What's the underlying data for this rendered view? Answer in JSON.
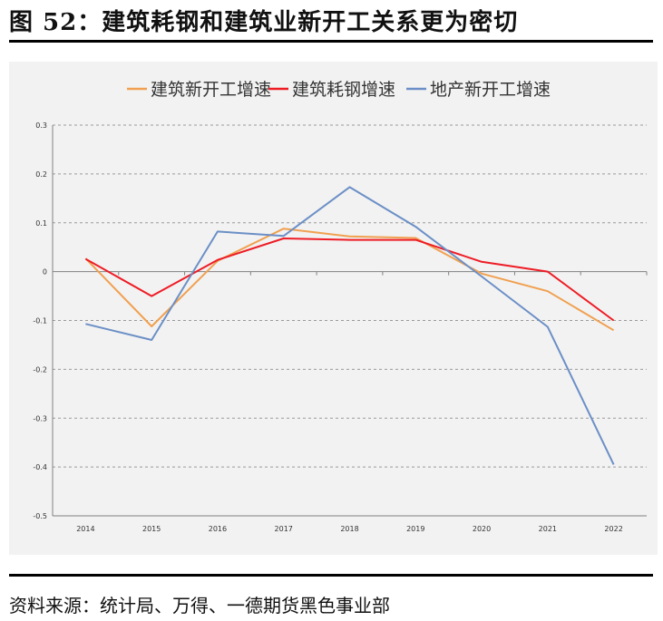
{
  "figure_title": "图 52：建筑耗钢和建筑业新开工关系更为密切",
  "source_note": "资料来源：统计局、万得、一德期货黑色事业部",
  "chart_data": {
    "type": "line",
    "categories": [
      "2014",
      "2015",
      "2016",
      "2017",
      "2018",
      "2019",
      "2020",
      "2021",
      "2022"
    ],
    "series": [
      {
        "name": "建筑新开工增速",
        "color": "#f0a050",
        "values": [
          0.027,
          -0.112,
          0.022,
          0.088,
          0.072,
          0.069,
          -0.004,
          -0.04,
          -0.12
        ]
      },
      {
        "name": "建筑耗钢增速",
        "color": "#ee1c25",
        "values": [
          0.026,
          -0.05,
          0.024,
          0.068,
          0.065,
          0.065,
          0.02,
          0.0,
          -0.1
        ]
      },
      {
        "name": "地产新开工增速",
        "color": "#6b8fc6",
        "values": [
          -0.107,
          -0.14,
          0.082,
          0.073,
          0.173,
          0.092,
          -0.01,
          -0.113,
          -0.395
        ]
      }
    ],
    "ylim": [
      -0.5,
      0.3
    ],
    "yticks": [
      "0.3",
      "0.2",
      "0.1",
      "0",
      "-0.1",
      "-0.2",
      "-0.3",
      "-0.4",
      "-0.5"
    ],
    "ytick_values": [
      0.3,
      0.2,
      0.1,
      0,
      -0.1,
      -0.2,
      -0.3,
      -0.4,
      -0.5
    ],
    "grid": true,
    "legend_position": "top-center"
  }
}
